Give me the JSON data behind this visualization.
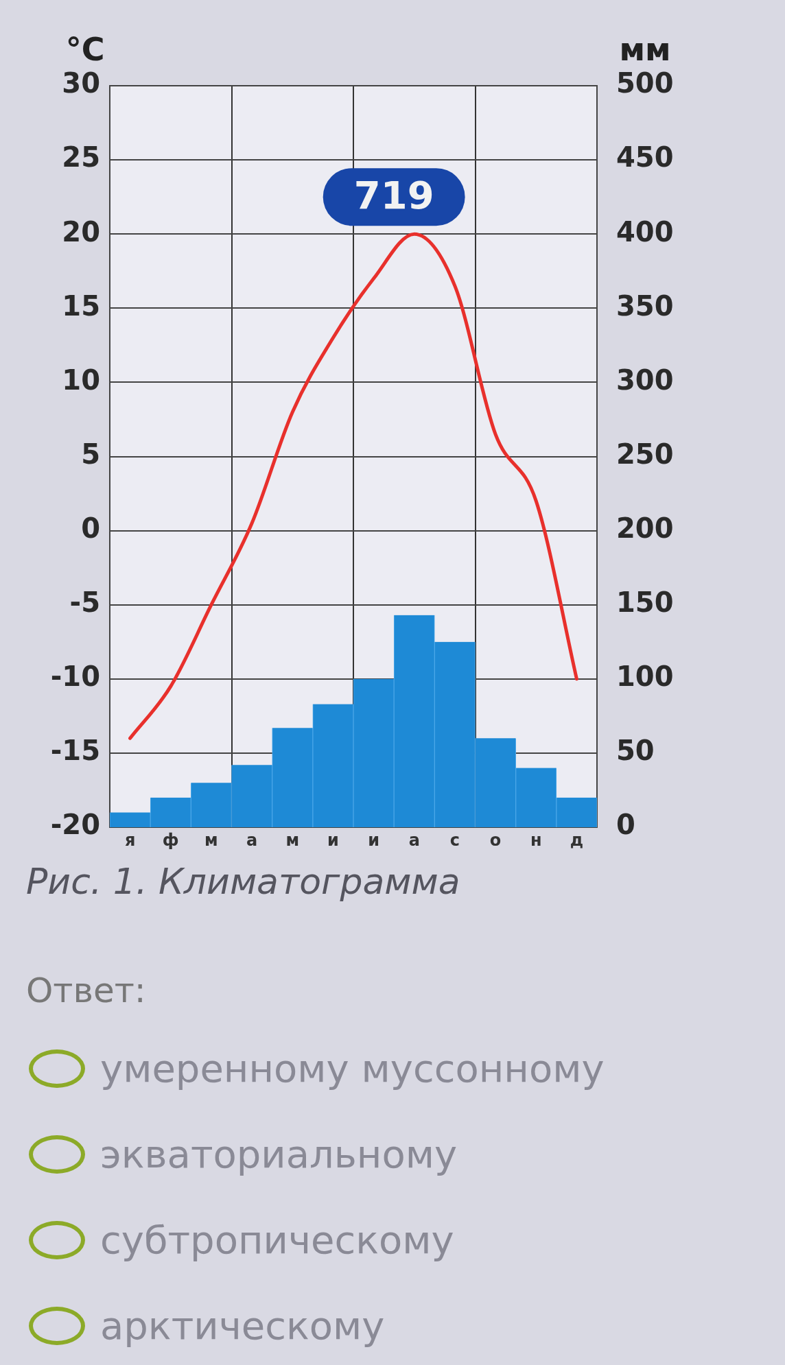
{
  "chart_data": {
    "type": "bar",
    "ylabel": "°C",
    "y2label": "мм",
    "categories": [
      "я",
      "ф",
      "м",
      "а",
      "м",
      "и",
      "и",
      "а",
      "с",
      "о",
      "н",
      "д"
    ],
    "series": [
      {
        "axis": "y2",
        "color": "#1e8ad6",
        "values": [
          10,
          20,
          30,
          42,
          67,
          83,
          100,
          143,
          125,
          60,
          40,
          20
        ]
      },
      {
        "type": "line",
        "axis": "y",
        "color": "#e8302c",
        "marker": "none",
        "values": [
          -14,
          -10.5,
          -5,
          0.5,
          8,
          13,
          17,
          20,
          16.5,
          6.5,
          2,
          -10
        ]
      }
    ],
    "ylim": [
      -20,
      30
    ],
    "yticks": [
      -20,
      -15,
      -10,
      -5,
      0,
      5,
      10,
      15,
      20,
      25,
      30
    ],
    "y2lim": [
      0,
      500
    ],
    "y2ticks": [
      0,
      50,
      100,
      150,
      200,
      250,
      300,
      350,
      400,
      450,
      500
    ],
    "grid": true,
    "legend": false,
    "annotations": [
      "719",
      "Рис. 1. Климатограмма",
      "Ответ:",
      "умеренному муссонному",
      "экваториальному",
      "субтропическому",
      "арктическому"
    ]
  }
}
